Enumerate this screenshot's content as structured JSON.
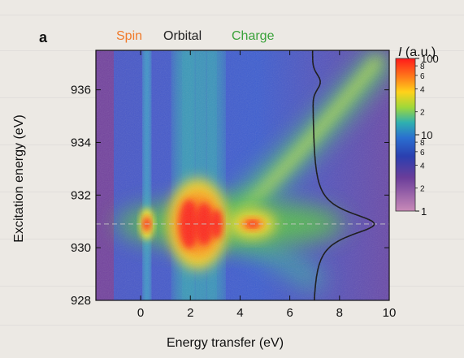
{
  "panel_label": "a",
  "chart_data": {
    "type": "heatmap",
    "title": "",
    "categories_header": [
      {
        "label": "Spin",
        "color": "#f07a2a"
      },
      {
        "label": "Orbital",
        "color": "#222222"
      },
      {
        "label": "Charge",
        "color": "#3aa23a"
      }
    ],
    "xlabel": "Energy transfer (eV)",
    "ylabel": "Excitation energy (eV)",
    "xlim": [
      -1.8,
      10
    ],
    "ylim": [
      928,
      937.5
    ],
    "xticks": [
      "0",
      "2",
      "4",
      "6",
      "8",
      "10"
    ],
    "xtick_values": [
      0,
      2,
      4,
      6,
      8,
      10
    ],
    "yticks": [
      "928",
      "930",
      "932",
      "934",
      "936"
    ],
    "ytick_values": [
      928,
      930,
      932,
      934,
      936
    ],
    "dashed_line_y": 930.9,
    "colorbar": {
      "title": "I (a.u.)",
      "scale": "log",
      "range": [
        1,
        100
      ],
      "major_labels": [
        "100",
        "10",
        "1"
      ],
      "minor_labels": [
        "8",
        "6",
        "4",
        "2",
        "8",
        "6",
        "4",
        "2"
      ],
      "colors": [
        "#ff1a1a",
        "#ffbf00",
        "#f7f03a",
        "#2fc04a",
        "#2a7fd8",
        "#2a3fb0",
        "#7c3b93",
        "#c98ab8"
      ]
    },
    "features": [
      {
        "name": "Spin",
        "x": 0.25,
        "y": 930.9,
        "peak": 8
      },
      {
        "name": "Orbital",
        "x": 2.0,
        "y": 930.9,
        "peak": 80
      },
      {
        "name": "Orbital",
        "x": 2.7,
        "y": 930.9,
        "peak": 60
      },
      {
        "name": "Charge",
        "x": 4.5,
        "y": 930.9,
        "peak": 30
      }
    ],
    "absorption_curve": {
      "peak_x": 9.4,
      "peak_y": 930.9,
      "baseline_x": 6.9
    }
  }
}
